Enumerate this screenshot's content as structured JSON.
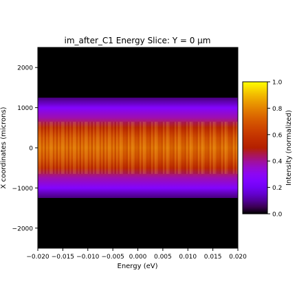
{
  "chart_data": {
    "type": "heatmap",
    "title": "im_after_C1 Energy Slice: Y = 0 μm",
    "xlabel": "Energy (eV)",
    "ylabel": "X coordinates (microns)",
    "xlim": [
      -0.02,
      0.02
    ],
    "ylim": [
      -2500,
      2500
    ],
    "x_ticks": [
      "−0.020",
      "−0.015",
      "−0.010",
      "−0.005",
      "0.000",
      "0.005",
      "0.010",
      "0.015",
      "0.020"
    ],
    "x_tick_values": [
      -0.02,
      -0.015,
      -0.01,
      -0.005,
      0.0,
      0.005,
      0.01,
      0.015,
      0.02
    ],
    "y_ticks": [
      "2000",
      "1000",
      "0",
      "−1000",
      "−2000"
    ],
    "y_tick_values": [
      2000,
      1000,
      0,
      -1000,
      -2000
    ],
    "colormap": "gnuplot",
    "colorbar": {
      "label": "Intensity (normalized)",
      "range": [
        0.0,
        1.0
      ],
      "ticks": [
        "0.0",
        "0.2",
        "0.4",
        "0.6",
        "0.8",
        "1.0"
      ],
      "tick_values": [
        0.0,
        0.2,
        0.4,
        0.6,
        0.8,
        1.0
      ]
    },
    "beam_x_extent": [
      -1250,
      1250
    ],
    "intensity_profile_vs_x": [
      {
        "x": -1250,
        "intensity": 0.08
      },
      {
        "x": -1000,
        "intensity": 0.26
      },
      {
        "x": -750,
        "intensity": 0.38
      },
      {
        "x": -500,
        "intensity": 0.56
      },
      {
        "x": -250,
        "intensity": 0.7
      },
      {
        "x": 0,
        "intensity": 0.76
      },
      {
        "x": 250,
        "intensity": 0.7
      },
      {
        "x": 500,
        "intensity": 0.56
      },
      {
        "x": 750,
        "intensity": 0.38
      },
      {
        "x": 1000,
        "intensity": 0.26
      },
      {
        "x": 1250,
        "intensity": 0.08
      }
    ],
    "grid": false
  }
}
